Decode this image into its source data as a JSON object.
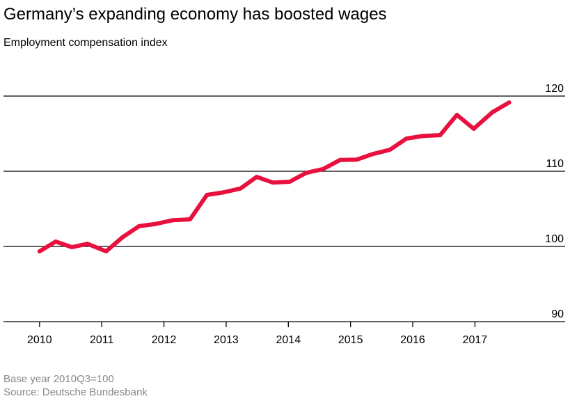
{
  "chart_data": {
    "type": "line",
    "title": "Germany’s expanding economy has boosted wages",
    "subtitle": "Employment compensation index",
    "notes": [
      "Base year 2010Q3=100",
      "Source: Deutsche Bundesbank"
    ],
    "x": [
      2010,
      2010.26,
      2010.52,
      2010.77,
      2011.07,
      2011.33,
      2011.6,
      2011.87,
      2012.15,
      2012.42,
      2012.69,
      2012.96,
      2013.23,
      2013.49,
      2013.75,
      2014.02,
      2014.29,
      2014.56,
      2014.83,
      2015.1,
      2015.36,
      2015.63,
      2015.9,
      2016.17,
      2016.44,
      2016.71,
      2016.98,
      2017.28,
      2017.55
    ],
    "series": [
      {
        "name": "Employment compensation index",
        "color": "#e8103e",
        "values": [
          99.35,
          100.65,
          99.9,
          100.35,
          99.35,
          101.2,
          102.7,
          103.0,
          103.5,
          103.6,
          106.85,
          107.2,
          107.7,
          109.25,
          108.5,
          108.6,
          109.8,
          110.3,
          111.5,
          111.55,
          112.3,
          112.85,
          114.35,
          114.7,
          114.8,
          117.5,
          115.65,
          117.85,
          119.15
        ]
      }
    ],
    "xlim": [
      2009.42,
      2018.45
    ],
    "xticks": [
      2010,
      2011,
      2012,
      2013,
      2014,
      2015,
      2016,
      2017
    ],
    "ylim": [
      90,
      120
    ],
    "yticks": [
      90,
      100,
      110,
      120
    ],
    "grid": true
  }
}
